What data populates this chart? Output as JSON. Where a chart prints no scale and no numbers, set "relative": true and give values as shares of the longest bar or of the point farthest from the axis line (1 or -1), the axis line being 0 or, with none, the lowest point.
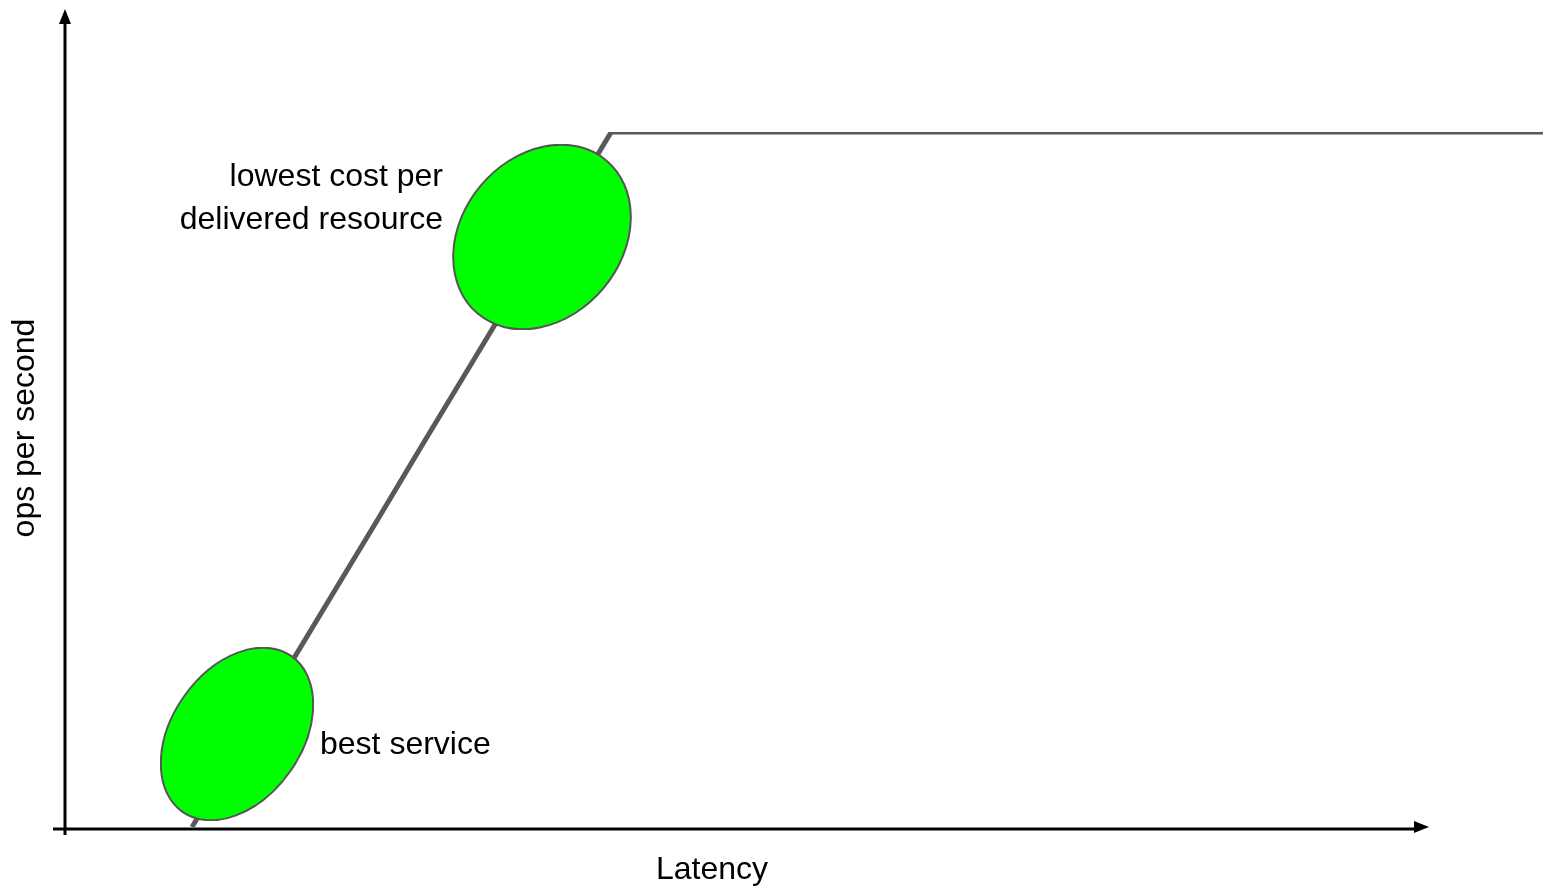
{
  "chart_data": {
    "type": "line",
    "xlabel": "Latency",
    "ylabel": "ops per second",
    "relative": true,
    "categories": [
      null,
      null,
      null,
      null,
      null,
      null,
      null,
      null,
      null,
      null,
      null,
      null,
      null,
      null,
      null,
      null,
      null,
      null,
      null,
      null,
      null,
      null,
      null,
      null,
      null,
      null,
      null,
      null,
      null,
      null
    ],
    "series": [
      {
        "color": "#595959",
        "values": [
          0,
          null,
          null,
          0.333,
          0.444,
          0.556,
          0.667,
          null,
          null,
          1,
          1,
          1,
          1,
          1,
          1,
          1,
          1,
          1,
          1,
          1,
          1,
          1,
          1,
          1,
          1,
          1,
          1,
          1,
          1,
          1
        ]
      }
    ],
    "annotations": [
      "lowest cost per delivered resource",
      "best service"
    ],
    "grid": false,
    "legend": false,
    "marker": "none"
  }
}
